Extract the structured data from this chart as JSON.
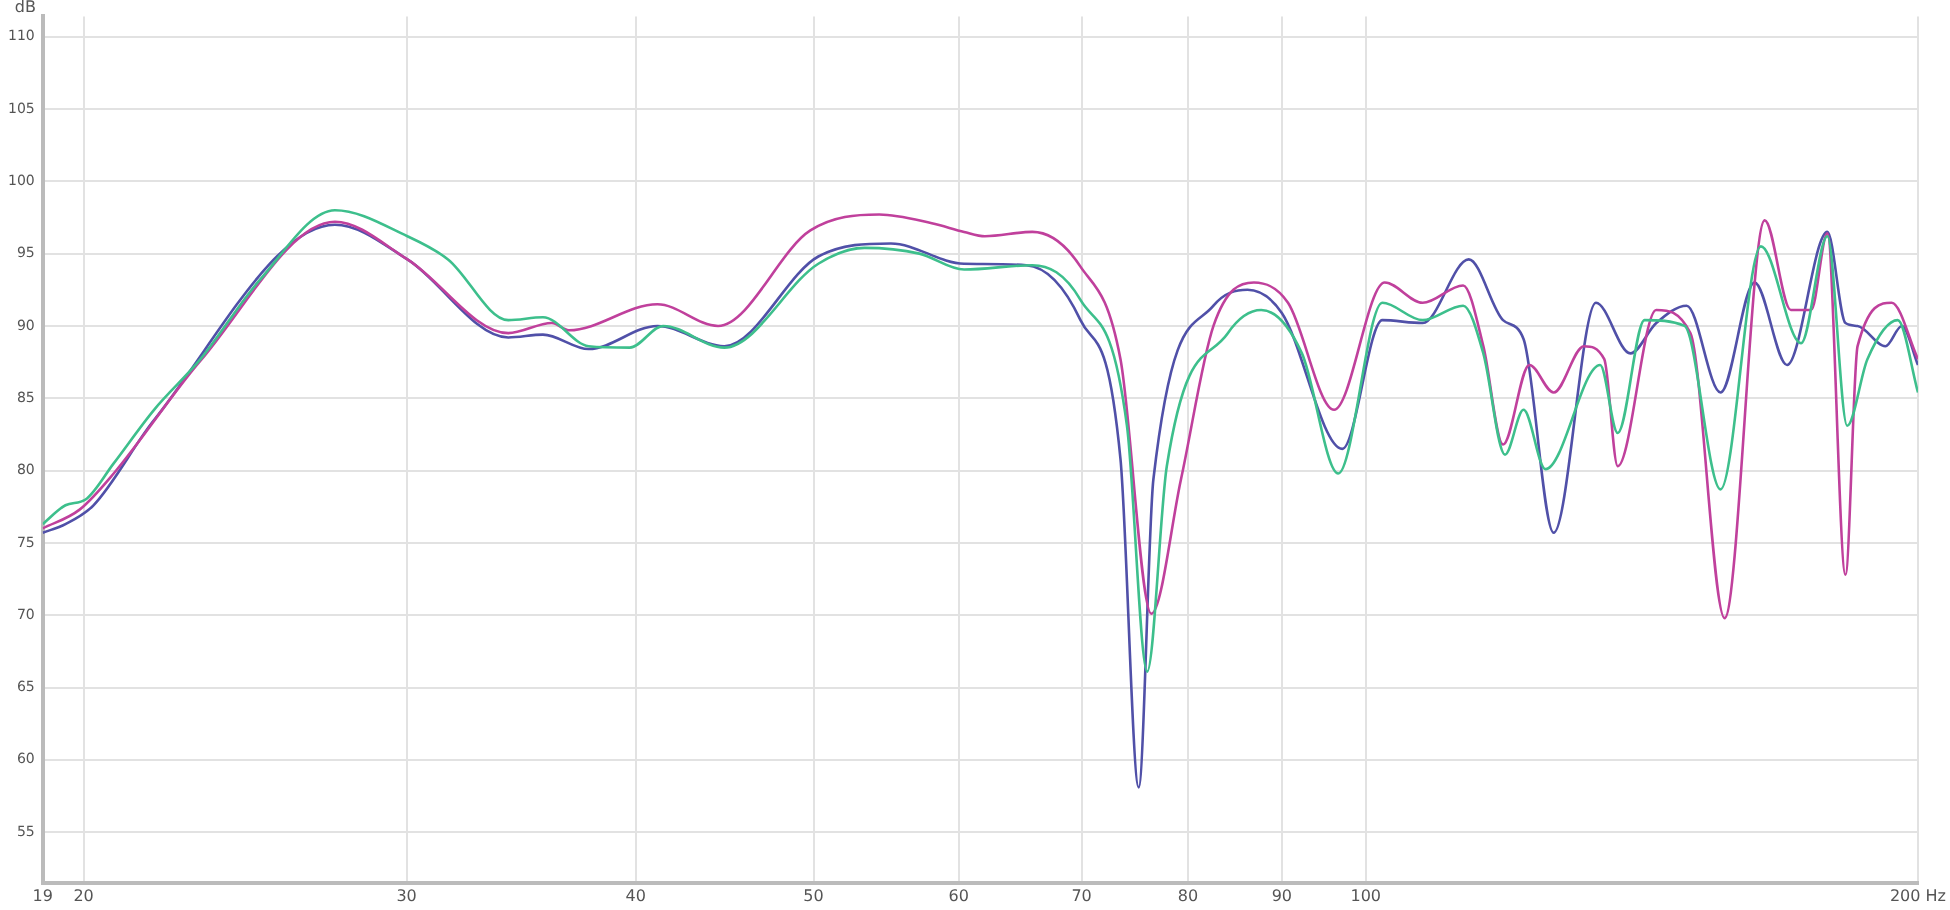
{
  "chart_data": {
    "type": "line",
    "ylabel": "dB",
    "xlim": [
      19,
      200
    ],
    "ylim": [
      51.5,
      111.4
    ],
    "xticks": [
      19,
      20,
      30,
      40,
      50,
      60,
      70,
      80,
      90,
      100,
      {
        "value": 200,
        "label": "200 Hz"
      }
    ],
    "yticks": [
      55,
      60,
      65,
      70,
      75,
      80,
      85,
      90,
      95,
      100,
      105,
      110
    ],
    "log": "x",
    "grid": true,
    "legend": false,
    "marker": "none",
    "line_style": "solid",
    "series": [
      {
        "color": "#3dbf8c",
        "x": [
          19,
          19.55,
          20.05,
          20.77,
          21.85,
          23.16,
          24.96,
          27.42,
          30.03,
          31.6,
          34.08,
          35.6,
          37.7,
          39.7,
          41.4,
          44.7,
          50.3,
          53.3,
          57.1,
          60.4,
          65.8,
          69.9,
          74.1,
          76.0,
          77.9,
          84.1,
          87.7,
          92.3,
          96.6,
          102.1,
          107.4,
          113.0,
          115.9,
          119.1,
          121.9,
          125.3,
          134.2,
          137.2,
          141.9,
          149.2,
          156.1,
          164.2,
          172.7,
          178.5,
          183.0,
          187.7,
          195.0,
          200
        ],
        "values": [
          76.3,
          77.6,
          78.0,
          80.5,
          84.2,
          87.7,
          93.2,
          98.0,
          96.2,
          94.6,
          90.4,
          90.6,
          88.6,
          88.5,
          90.0,
          88.5,
          94.3,
          95.4,
          95.0,
          93.9,
          94.2,
          91.8,
          83.1,
          66.1,
          80.3,
          89.5,
          91.1,
          88.1,
          79.8,
          91.6,
          90.4,
          91.4,
          88.1,
          81.1,
          84.2,
          80.1,
          87.3,
          82.6,
          90.4,
          90.0,
          78.7,
          95.5,
          88.8,
          96.2,
          83.1,
          87.7,
          90.4,
          85.4
        ]
      },
      {
        "color": "#c0409c",
        "x": [
          19,
          19.9,
          20.77,
          23.16,
          27.42,
          30.03,
          34.08,
          36.0,
          36.78,
          41.1,
          44.35,
          49.8,
          54.3,
          58.0,
          60.4,
          62.0,
          65.8,
          69.9,
          73.5,
          76.4,
          79.3,
          82.6,
          86.9,
          90.7,
          96.1,
          102.4,
          107.4,
          113.0,
          115.9,
          118.8,
          122.8,
          126.6,
          131.5,
          134.9,
          137.2,
          144.0,
          150.3,
          156.9,
          165.0,
          170.5,
          174.9,
          178.5,
          182.6,
          185.4,
          193.5,
          200
        ],
        "values": [
          76.0,
          77.3,
          79.8,
          87.6,
          97.2,
          94.6,
          89.5,
          90.2,
          89.7,
          91.5,
          90.0,
          96.6,
          97.7,
          97.1,
          96.5,
          96.2,
          96.5,
          94.1,
          87.7,
          70.1,
          79.4,
          90.0,
          93.0,
          91.6,
          84.2,
          93.0,
          91.6,
          92.8,
          88.6,
          81.8,
          87.3,
          85.4,
          88.6,
          87.7,
          80.3,
          91.1,
          89.5,
          69.8,
          97.3,
          91.1,
          91.1,
          96.4,
          72.8,
          88.6,
          91.6,
          87.7
        ]
      },
      {
        "color": "#5050a8",
        "x": [
          19,
          19.55,
          20.25,
          21.85,
          27.42,
          30.03,
          34.08,
          35.6,
          37.7,
          41.1,
          44.7,
          50.3,
          55.1,
          60.4,
          65.3,
          69.9,
          73.5,
          75.2,
          76.6,
          82.6,
          86.2,
          90.0,
          97.1,
          102.1,
          107.4,
          113.8,
          118.8,
          121.9,
          126.6,
          133.5,
          139.4,
          144.0,
          149.6,
          156.1,
          162.9,
          169.7,
          178.5,
          182.6,
          185.4,
          192.0,
          196.0,
          200
        ],
        "values": [
          75.7,
          76.3,
          77.6,
          83.5,
          97.0,
          94.6,
          89.2,
          89.4,
          88.4,
          90.0,
          88.6,
          94.8,
          95.7,
          94.3,
          94.2,
          90.4,
          80.8,
          58.1,
          79.4,
          91.4,
          92.5,
          90.9,
          81.5,
          90.4,
          90.2,
          94.6,
          90.4,
          89.1,
          75.7,
          91.6,
          88.1,
          90.2,
          91.4,
          85.4,
          93.0,
          87.3,
          96.5,
          90.2,
          90.0,
          88.6,
          90.0,
          87.3
        ]
      }
    ]
  }
}
